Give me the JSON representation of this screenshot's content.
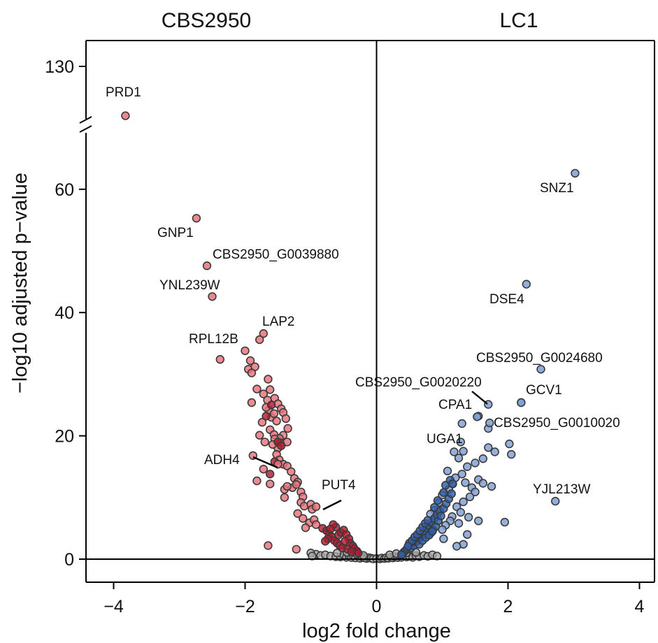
{
  "chart_data": {
    "type": "scatter",
    "title": "",
    "group_labels": [
      "CBS2950",
      "LC1"
    ],
    "xlabel": "log2 fold change",
    "ylabel": "−log10 adjusted p−value",
    "xlim": [
      -4.4,
      4.3
    ],
    "ylim": [
      -4,
      130
    ],
    "y_axis_break": true,
    "x_ticks": [
      -4,
      -2,
      0,
      2,
      4
    ],
    "x_tick_labels": [
      "−4",
      "−2",
      "0",
      "2",
      "4"
    ],
    "y_ticks": [
      0,
      20,
      40,
      60,
      130
    ],
    "y_tick_labels": [
      "0",
      "20",
      "40",
      "60",
      "130"
    ],
    "grid": false,
    "legend": "none",
    "colors": {
      "up_cbs2950": "#e8737a",
      "up_cbs2950_dense": "#b01c2e",
      "up_lc1": "#7f9fd3",
      "up_lc1_dense": "#2f5ea8",
      "not_significant": "#a8a8a8",
      "point_edge": "#3a3a3a",
      "axis": "#000000"
    },
    "labeled_genes": [
      {
        "gene": "PRD1",
        "x": -3.82,
        "y": 122
      },
      {
        "gene": "GNP1",
        "x": -2.74,
        "y": 55.3
      },
      {
        "gene": "CBS2950_G0039880",
        "x": -2.58,
        "y": 47.6
      },
      {
        "gene": "YNL239W",
        "x": -2.5,
        "y": 42.6
      },
      {
        "gene": "LAP2",
        "x": -1.72,
        "y": 36.6
      },
      {
        "gene": "RPL12B",
        "x": -1.78,
        "y": 35.6
      },
      {
        "gene": "ADH4",
        "x": -1.5,
        "y": 15.4
      },
      {
        "gene": "PUT4",
        "x": -0.92,
        "y": 8.5
      },
      {
        "gene": "SNZ1",
        "x": 3.02,
        "y": 62.6
      },
      {
        "gene": "DSE4",
        "x": 2.28,
        "y": 44.6
      },
      {
        "gene": "CBS2950_G0024680",
        "x": 2.5,
        "y": 30.8
      },
      {
        "gene": "CBS2950_G0020220",
        "x": 1.7,
        "y": 25.1
      },
      {
        "gene": "CPA1",
        "x": 1.53,
        "y": 23.1
      },
      {
        "gene": "GCV1",
        "x": 2.2,
        "y": 25.4
      },
      {
        "gene": "CBS2950_G0010020",
        "x": 1.72,
        "y": 22.1
      },
      {
        "gene": "UGA1",
        "x": 1.32,
        "y": 17.5
      },
      {
        "gene": "YJL213W",
        "x": 2.72,
        "y": 9.4
      }
    ],
    "series": [
      {
        "group": "up_cbs2950",
        "points": [
          [
            -1.92,
            32.2
          ],
          [
            -1.95,
            30.8
          ],
          [
            -2.0,
            33.8
          ],
          [
            -2.38,
            32.4
          ],
          [
            -1.85,
            31.2
          ],
          [
            -1.9,
            30.2
          ],
          [
            -1.65,
            29.2
          ],
          [
            -1.62,
            27.5
          ],
          [
            -1.55,
            26.1
          ],
          [
            -1.5,
            25.2
          ],
          [
            -1.45,
            24.4
          ],
          [
            -1.42,
            23.8
          ],
          [
            -1.6,
            23.0
          ],
          [
            -1.38,
            22.8
          ],
          [
            -1.35,
            21.2
          ],
          [
            -1.42,
            20.1
          ],
          [
            -1.48,
            19.6
          ],
          [
            -1.46,
            18.8
          ],
          [
            -1.5,
            18.0
          ],
          [
            -1.9,
            25.4
          ],
          [
            -1.82,
            27.6
          ],
          [
            -1.72,
            26.8
          ],
          [
            -1.66,
            25.8
          ],
          [
            -1.64,
            24.2
          ],
          [
            -1.56,
            23.6
          ],
          [
            -1.52,
            22.4
          ],
          [
            -1.62,
            21.0
          ],
          [
            -1.56,
            20.2
          ],
          [
            -1.7,
            19.0
          ],
          [
            -1.36,
            19.0
          ],
          [
            -1.52,
            17.0
          ],
          [
            -1.72,
            14.6
          ],
          [
            -1.82,
            12.7
          ],
          [
            -1.62,
            12.2
          ],
          [
            -1.48,
            16.1
          ],
          [
            -1.42,
            15.4
          ],
          [
            -1.36,
            15.1
          ],
          [
            -1.3,
            14.2
          ],
          [
            -1.25,
            13.1
          ],
          [
            -1.2,
            12.5
          ],
          [
            -1.28,
            11.6
          ],
          [
            -1.15,
            10.9
          ],
          [
            -1.12,
            10.1
          ],
          [
            -1.4,
            10.0
          ],
          [
            -1.15,
            9.2
          ],
          [
            -1.1,
            8.6
          ],
          [
            -1.0,
            8.9
          ],
          [
            -0.98,
            8.1
          ],
          [
            -1.2,
            7.4
          ],
          [
            -1.12,
            6.6
          ],
          [
            -1.02,
            5.9
          ],
          [
            -1.08,
            5.1
          ],
          [
            -0.95,
            6.4
          ],
          [
            -0.92,
            5.6
          ],
          [
            -1.4,
            11.3
          ],
          [
            -1.36,
            11.8
          ],
          [
            -1.22,
            12.1
          ],
          [
            -1.65,
            2.2
          ],
          [
            -1.22,
            1.6
          ],
          [
            -1.88,
            16.8
          ],
          [
            -1.55,
            19.5
          ],
          [
            -1.58,
            18.6
          ],
          [
            -1.78,
            20.1
          ],
          [
            -1.74,
            22.2
          ],
          [
            -1.68,
            24.6
          ]
        ]
      },
      {
        "group": "up_cbs2950_dense",
        "points": [
          [
            -0.82,
            5.0
          ],
          [
            -0.76,
            4.6
          ],
          [
            -0.72,
            4.1
          ],
          [
            -0.68,
            3.6
          ],
          [
            -0.64,
            3.0
          ],
          [
            -0.6,
            2.6
          ],
          [
            -0.58,
            3.9
          ],
          [
            -0.54,
            4.3
          ],
          [
            -0.5,
            4.7
          ],
          [
            -0.46,
            4.0
          ],
          [
            -0.42,
            3.3
          ],
          [
            -0.4,
            2.6
          ],
          [
            -0.36,
            2.1
          ],
          [
            -0.34,
            1.7
          ],
          [
            -0.3,
            1.3
          ],
          [
            -0.28,
            1.0
          ],
          [
            -0.62,
            5.2
          ],
          [
            -0.66,
            5.6
          ],
          [
            -0.7,
            4.9
          ],
          [
            -0.74,
            3.3
          ],
          [
            -0.78,
            2.9
          ],
          [
            -0.56,
            2.2
          ],
          [
            -0.52,
            1.8
          ],
          [
            -0.48,
            2.9
          ],
          [
            -0.44,
            1.6
          ],
          [
            -0.38,
            1.2
          ],
          [
            -1.5,
            19.0
          ],
          [
            -1.45,
            18.4
          ],
          [
            -1.55,
            15.8
          ],
          [
            -1.62,
            13.8
          ],
          [
            -1.6,
            25.0
          ],
          [
            -1.68,
            23.2
          ]
        ]
      },
      {
        "group": "up_lc1",
        "points": [
          [
            1.7,
            18.1
          ],
          [
            2.02,
            18.7
          ],
          [
            2.05,
            17.0
          ],
          [
            1.8,
            17.4
          ],
          [
            1.62,
            16.3
          ],
          [
            1.5,
            15.6
          ],
          [
            1.38,
            15.0
          ],
          [
            1.3,
            13.8
          ],
          [
            1.35,
            12.4
          ],
          [
            1.45,
            11.6
          ],
          [
            1.55,
            12.9
          ],
          [
            1.62,
            12.3
          ],
          [
            1.75,
            11.8
          ],
          [
            1.5,
            10.9
          ],
          [
            1.42,
            10.1
          ],
          [
            1.32,
            9.3
          ],
          [
            1.22,
            8.5
          ],
          [
            1.28,
            7.6
          ],
          [
            1.15,
            6.9
          ],
          [
            1.12,
            6.2
          ],
          [
            1.25,
            5.8
          ],
          [
            1.05,
            5.5
          ],
          [
            1.0,
            4.8
          ],
          [
            1.95,
            6.0
          ],
          [
            1.4,
            6.8
          ],
          [
            1.38,
            4.0
          ],
          [
            1.55,
            6.2
          ],
          [
            1.02,
            3.3
          ],
          [
            1.32,
            2.4
          ],
          [
            1.22,
            2.1
          ],
          [
            1.18,
            17.4
          ],
          [
            1.28,
            19.0
          ],
          [
            1.25,
            16.4
          ],
          [
            1.08,
            14.3
          ],
          [
            1.15,
            12.3
          ],
          [
            1.2,
            13.2
          ],
          [
            1.1,
            11.3
          ],
          [
            1.0,
            10.4
          ],
          [
            0.95,
            9.2
          ],
          [
            0.88,
            7.9
          ],
          [
            0.82,
            7.3
          ],
          [
            1.55,
            23.2
          ],
          [
            1.3,
            22.0
          ],
          [
            1.7,
            21.2
          ],
          [
            2.2,
            25.4
          ]
        ]
      },
      {
        "group": "up_lc1_dense",
        "points": [
          [
            0.52,
            1.8
          ],
          [
            0.56,
            2.2
          ],
          [
            0.6,
            2.8
          ],
          [
            0.64,
            3.3
          ],
          [
            0.68,
            3.8
          ],
          [
            0.72,
            4.4
          ],
          [
            0.76,
            5.0
          ],
          [
            0.8,
            5.5
          ],
          [
            0.84,
            6.0
          ],
          [
            0.88,
            6.6
          ],
          [
            0.92,
            7.2
          ],
          [
            0.96,
            7.8
          ],
          [
            0.5,
            2.6
          ],
          [
            0.54,
            3.0
          ],
          [
            0.58,
            3.6
          ],
          [
            0.62,
            4.0
          ],
          [
            0.66,
            4.6
          ],
          [
            0.7,
            5.2
          ],
          [
            0.74,
            5.8
          ],
          [
            0.78,
            6.3
          ],
          [
            0.82,
            4.2
          ],
          [
            0.86,
            4.8
          ],
          [
            0.9,
            5.3
          ],
          [
            0.94,
            6.2
          ],
          [
            0.98,
            7.0
          ],
          [
            1.02,
            8.2
          ],
          [
            1.06,
            9.0
          ],
          [
            1.1,
            9.8
          ],
          [
            1.14,
            10.6
          ],
          [
            0.45,
            1.5
          ],
          [
            0.48,
            2.1
          ],
          [
            0.42,
            1.2
          ],
          [
            0.65,
            2.4
          ],
          [
            0.7,
            3.0
          ],
          [
            0.75,
            3.5
          ],
          [
            0.8,
            3.9
          ],
          [
            0.85,
            4.5
          ],
          [
            1.05,
            12.0
          ],
          [
            1.12,
            12.8
          ],
          [
            1.16,
            12.2
          ],
          [
            0.4,
            0.9
          ],
          [
            0.38,
            0.7
          ],
          [
            0.88,
            8.4
          ],
          [
            0.93,
            9.5
          ],
          [
            1.02,
            10.8
          ]
        ]
      },
      {
        "group": "not_significant",
        "points": [
          [
            -0.92,
            0.8
          ],
          [
            -0.85,
            0.6
          ],
          [
            -0.78,
            0.7
          ],
          [
            -0.7,
            0.5
          ],
          [
            -0.62,
            0.4
          ],
          [
            -0.55,
            0.35
          ],
          [
            -0.5,
            0.7
          ],
          [
            -0.46,
            0.3
          ],
          [
            -0.42,
            0.6
          ],
          [
            -0.38,
            0.25
          ],
          [
            -0.35,
            0.5
          ],
          [
            -0.32,
            0.2
          ],
          [
            -0.28,
            0.45
          ],
          [
            -0.25,
            0.15
          ],
          [
            -0.22,
            0.35
          ],
          [
            -0.18,
            0.2
          ],
          [
            -0.15,
            0.1
          ],
          [
            -0.12,
            0.25
          ],
          [
            -0.08,
            0.15
          ],
          [
            -0.05,
            0.05
          ],
          [
            0.0,
            0.1
          ],
          [
            0.05,
            0.05
          ],
          [
            0.08,
            0.18
          ],
          [
            0.12,
            0.1
          ],
          [
            0.15,
            0.25
          ],
          [
            0.18,
            0.15
          ],
          [
            0.22,
            0.3
          ],
          [
            0.25,
            0.2
          ],
          [
            0.28,
            0.4
          ],
          [
            0.32,
            0.25
          ],
          [
            0.35,
            0.5
          ],
          [
            0.38,
            0.3
          ],
          [
            0.42,
            0.6
          ],
          [
            0.46,
            0.35
          ],
          [
            0.5,
            0.45
          ],
          [
            0.55,
            0.3
          ],
          [
            0.6,
            0.55
          ],
          [
            0.65,
            0.4
          ],
          [
            0.72,
            0.6
          ],
          [
            0.78,
            0.45
          ],
          [
            0.85,
            0.7
          ],
          [
            0.92,
            0.5
          ],
          [
            -0.6,
            1.0
          ],
          [
            -0.45,
            1.1
          ],
          [
            -0.3,
            0.8
          ],
          [
            -0.2,
            0.6
          ],
          [
            0.2,
            0.7
          ],
          [
            0.3,
            0.9
          ],
          [
            0.45,
            1.0
          ],
          [
            0.6,
            1.1
          ],
          [
            -1.0,
            1.0
          ],
          [
            -0.98,
            0.5
          ]
        ]
      }
    ]
  }
}
